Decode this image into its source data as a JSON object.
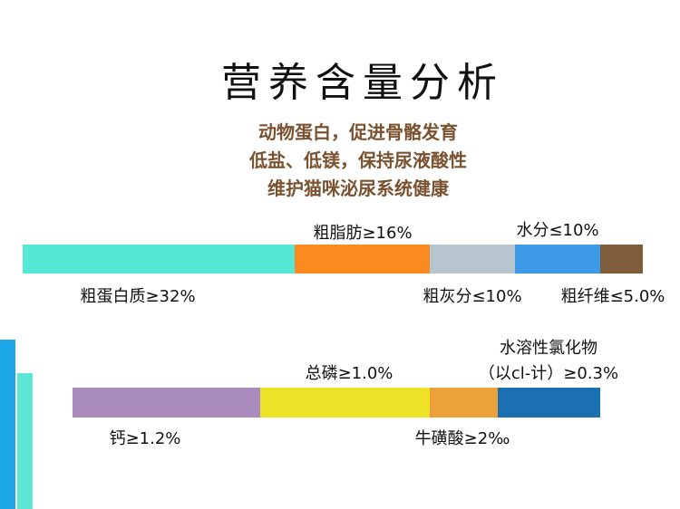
{
  "header": {
    "title": "营养含量分析",
    "subtitle": [
      "动物蛋白，促进骨骼发育",
      "低盐、低镁，保持尿液酸性",
      "维护猫咪泌尿系统健康"
    ]
  },
  "top_bar": {
    "labels": [
      "粗蛋白质≥32%",
      "粗脂肪≥16%",
      "粗灰分≤10%",
      "水分≤10%",
      "粗纤维≤5.0%"
    ]
  },
  "bottom_bar": {
    "labels": [
      "钙≥1.2%",
      "总磷≥1.0%",
      "牛磺酸≥2‰",
      "水溶性氯化物",
      "（以cl-计）≥0.3%"
    ]
  }
}
